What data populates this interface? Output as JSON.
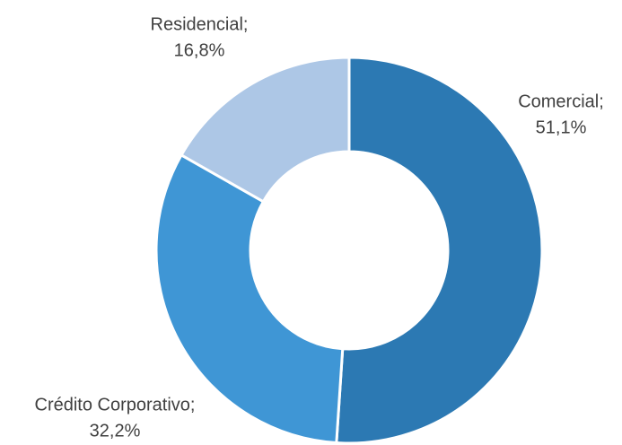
{
  "chart_data": {
    "type": "donut",
    "categories": [
      "Comercial;",
      "Crédito Corporativo;",
      "Residencial;"
    ],
    "values": [
      51.1,
      32.2,
      16.8
    ],
    "value_labels": [
      "51,1%",
      "32,2%",
      "16,8%"
    ],
    "colors": [
      "#2c79b3",
      "#3f96d5",
      "#adc7e6"
    ]
  }
}
